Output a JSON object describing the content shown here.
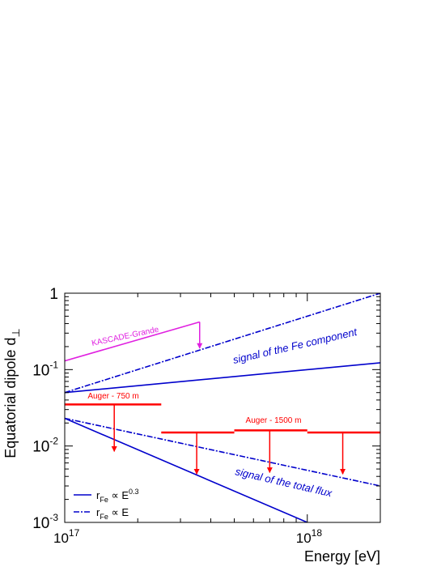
{
  "chart_data": {
    "type": "line",
    "title": "",
    "xlabel": "Energy [eV]",
    "ylabel": "Equatorial dipole d",
    "ylabel_subscript": "⊥",
    "xscale": "log",
    "yscale": "log",
    "xlim": [
      1e+17,
      2e+18
    ],
    "ylim": [
      0.001,
      1
    ],
    "x_ticks": [
      {
        "base": "10",
        "exp": "17",
        "value": 1e+17
      },
      {
        "base": "10",
        "exp": "18",
        "value": 1e+18
      }
    ],
    "y_ticks": [
      {
        "base": "1",
        "exp": "",
        "value": 1
      },
      {
        "base": "10",
        "exp": "-1",
        "value": 0.1
      },
      {
        "base": "10",
        "exp": "-2",
        "value": 0.01
      },
      {
        "base": "10",
        "exp": "-3",
        "value": 0.001
      }
    ],
    "grid": false,
    "legend_position": "bottom-left",
    "series": [
      {
        "id": "fe-0.3",
        "group": "Fe component",
        "style": "solid",
        "color": "#0000cc",
        "x": [
          1e+17,
          2e+18
        ],
        "y": [
          0.05,
          0.123
        ]
      },
      {
        "id": "fe-1",
        "group": "Fe component",
        "style": "dashdot",
        "color": "#0000cc",
        "x": [
          1e+17,
          2e+18
        ],
        "y": [
          0.05,
          1.0
        ]
      },
      {
        "id": "total-0.3",
        "group": "total flux",
        "style": "solid",
        "color": "#0000cc",
        "x": [
          1e+17,
          1e+18
        ],
        "y": [
          0.023,
          0.001
        ]
      },
      {
        "id": "total-1",
        "group": "total flux",
        "style": "dashdot",
        "color": "#0000cc",
        "x": [
          1e+17,
          2e+18
        ],
        "y": [
          0.023,
          0.003
        ]
      }
    ],
    "legend": [
      {
        "style": "solid",
        "label_main": "r",
        "label_sub": "Fe",
        "label_rel": " ∝ E",
        "label_sup": "0.3"
      },
      {
        "style": "dashdot",
        "label_main": "r",
        "label_sub": "Fe",
        "label_rel": " ∝ E",
        "label_sup": ""
      }
    ],
    "upper_limits": [
      {
        "group": "KASCADE-Grande",
        "color": "#e020e0",
        "x_from": 1e+17,
        "x_to": 3.6e+17,
        "y_from": 0.13,
        "y_to": 0.42,
        "arrow_x": 3.6e+17,
        "arrow_to": 0.19
      },
      {
        "group": "Auger - 750 m",
        "color": "#ff0000",
        "x_from": 1e+17,
        "x_to": 2.5e+17,
        "y_from": 0.035,
        "y_to": 0.035,
        "arrow_x": 1.6e+17,
        "arrow_to": 0.0085
      },
      {
        "group": "Auger - 1500 m",
        "color": "#ff0000",
        "x_from": 2.5e+17,
        "x_to": 5e+17,
        "y_from": 0.015,
        "y_to": 0.015,
        "arrow_x": 3.5e+17,
        "arrow_to": 0.0043
      },
      {
        "group": "Auger - 1500 m",
        "color": "#ff0000",
        "x_from": 5e+17,
        "x_to": 1e+18,
        "y_from": 0.016,
        "y_to": 0.016,
        "arrow_x": 7e+17,
        "arrow_to": 0.0045
      },
      {
        "group": "Auger - 1500 m",
        "color": "#ff0000",
        "x_from": 1e+18,
        "x_to": 2e+18,
        "y_from": 0.015,
        "y_to": 0.015,
        "arrow_x": 1.4e+18,
        "arrow_to": 0.0043
      }
    ],
    "annotations": [
      {
        "text": "KASCADE-Grande",
        "color": "#e020e0",
        "size": 10
      },
      {
        "text": "Auger - 750 m",
        "color": "#ff0000",
        "size": 10
      },
      {
        "text": "Auger - 1500 m",
        "color": "#ff0000",
        "size": 10
      },
      {
        "text": "signal of the Fe component",
        "color": "#0000cc",
        "size": 13
      },
      {
        "text": "signal of the total flux",
        "color": "#0000cc",
        "size": 13
      }
    ]
  }
}
